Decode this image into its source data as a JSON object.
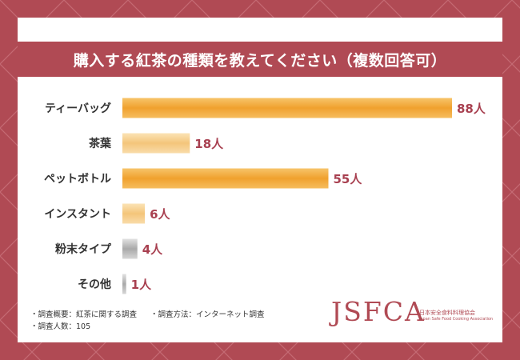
{
  "title": "購入する紅茶の種類を教えてください（複数回答可）",
  "colors": {
    "frame": "#b04a54",
    "bar_orange": "#f0a93a",
    "bar_light_orange": "#f6cf8c",
    "bar_gray": "#bdbdbd",
    "label_value": "#a84050"
  },
  "chart_data": {
    "type": "bar",
    "orientation": "horizontal",
    "unit": "人",
    "categories": [
      "ティーバッグ",
      "茶葉",
      "ペットボトル",
      "インスタント",
      "粉末タイプ",
      "その他"
    ],
    "values": [
      88,
      18,
      55,
      6,
      4,
      1
    ],
    "value_labels": [
      "88人",
      "18人",
      "55人",
      "6人",
      "4人",
      "1人"
    ],
    "bar_styles": [
      "orange",
      "light-orange",
      "orange",
      "light-orange",
      "gray",
      "gray"
    ],
    "xlim": [
      0,
      88
    ]
  },
  "notes": {
    "survey_summary": "・調査概要：紅茶に関する調査",
    "survey_method": "・調査方法：インターネット調査",
    "respondents": "・調査人数：105"
  },
  "logo": {
    "main": "JSFCA",
    "sub_ja": "日本安全食料料理協会",
    "sub_en": "Japan Safe Food Cooking Association"
  }
}
